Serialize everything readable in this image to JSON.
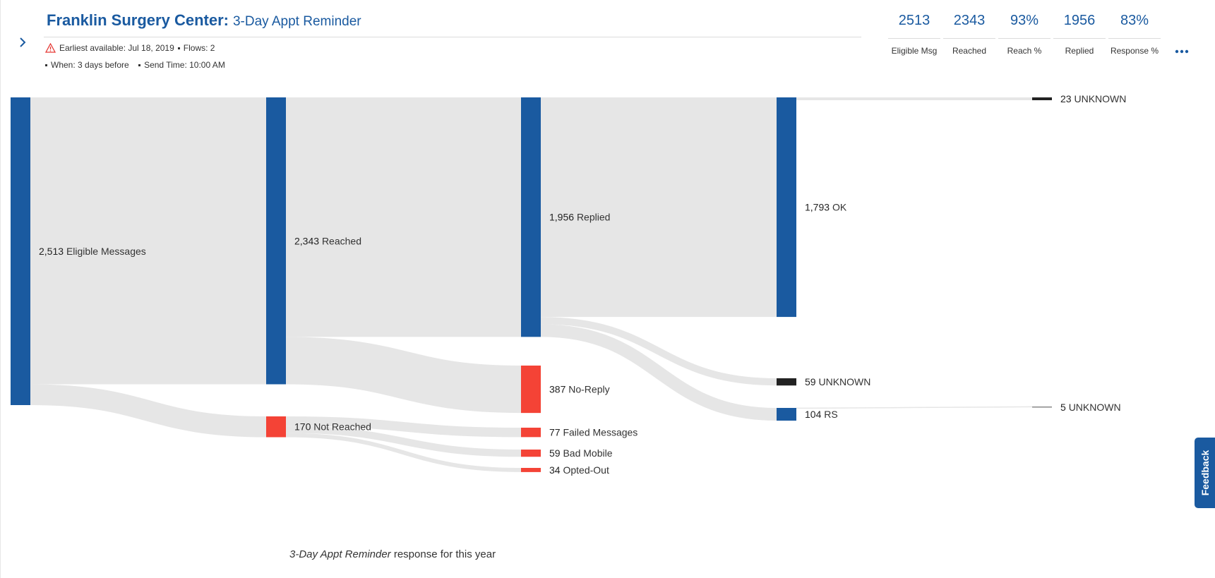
{
  "header": {
    "org_name": "Franklin Surgery Center:",
    "flow_name": "3-Day Appt Reminder",
    "earliest_available": "Earliest available: Jul 18, 2019",
    "flows": "Flows: 2",
    "when": "When: 3 days before",
    "send_time": "Send Time: 10:00 AM",
    "icons": {
      "expand": "chevron-right-icon",
      "warning": "warning-icon",
      "more": "more-horizontal-icon"
    }
  },
  "stats": [
    {
      "value": "2513",
      "label": "Eligible Msg"
    },
    {
      "value": "2343",
      "label": "Reached"
    },
    {
      "value": "93%",
      "label": "Reach %"
    },
    {
      "value": "1956",
      "label": "Replied"
    },
    {
      "value": "83%",
      "label": "Response %"
    }
  ],
  "chart_data": {
    "type": "sankey",
    "colors": {
      "success": "#1a5aa0",
      "failure": "#f44336",
      "unknown": "#222222",
      "link": "#e6e6e6"
    },
    "nodes": [
      {
        "id": "eligible",
        "count": "2,513",
        "label": "Eligible Messages",
        "value": 2513,
        "column": 0,
        "status": "success"
      },
      {
        "id": "reached",
        "count": "2,343",
        "label": "Reached",
        "value": 2343,
        "column": 1,
        "status": "success"
      },
      {
        "id": "not_reached",
        "count": "170",
        "label": "Not Reached",
        "value": 170,
        "column": 1,
        "status": "failure"
      },
      {
        "id": "replied",
        "count": "1,956",
        "label": "Replied",
        "value": 1956,
        "column": 2,
        "status": "success"
      },
      {
        "id": "no_reply",
        "count": "387",
        "label": "No-Reply",
        "value": 387,
        "column": 2,
        "status": "failure"
      },
      {
        "id": "failed",
        "count": "77",
        "label": "Failed Messages",
        "value": 77,
        "column": 2,
        "status": "failure"
      },
      {
        "id": "bad_mobile",
        "count": "59",
        "label": "Bad Mobile",
        "value": 59,
        "column": 2,
        "status": "failure"
      },
      {
        "id": "opted_out",
        "count": "34",
        "label": "Opted-Out",
        "value": 34,
        "column": 2,
        "status": "failure"
      },
      {
        "id": "ok",
        "count": "1,793",
        "label": "OK",
        "value": 1793,
        "column": 3,
        "status": "success"
      },
      {
        "id": "unknown3",
        "count": "59",
        "label": "UNKNOWN",
        "value": 59,
        "column": 3,
        "status": "unknown"
      },
      {
        "id": "rs",
        "count": "104",
        "label": "RS",
        "value": 104,
        "column": 3,
        "status": "success"
      },
      {
        "id": "unknown4a",
        "count": "23",
        "label": "UNKNOWN",
        "value": 23,
        "column": 4,
        "status": "unknown"
      },
      {
        "id": "unknown4b",
        "count": "5",
        "label": "UNKNOWN",
        "value": 5,
        "column": 4,
        "status": "unknown"
      }
    ],
    "links": [
      {
        "source": "eligible",
        "target": "reached",
        "value": 2343
      },
      {
        "source": "eligible",
        "target": "not_reached",
        "value": 170
      },
      {
        "source": "reached",
        "target": "replied",
        "value": 1956
      },
      {
        "source": "reached",
        "target": "no_reply",
        "value": 387
      },
      {
        "source": "not_reached",
        "target": "failed",
        "value": 77
      },
      {
        "source": "not_reached",
        "target": "bad_mobile",
        "value": 59
      },
      {
        "source": "not_reached",
        "target": "opted_out",
        "value": 34
      },
      {
        "source": "replied",
        "target": "ok",
        "value": 1793
      },
      {
        "source": "replied",
        "target": "unknown3",
        "value": 59
      },
      {
        "source": "replied",
        "target": "rs",
        "value": 104
      },
      {
        "source": "ok",
        "target": "unknown4a",
        "value": 23
      },
      {
        "source": "rs",
        "target": "unknown4b",
        "value": 5
      }
    ]
  },
  "caption": {
    "flow_name": "3-Day Appt Reminder",
    "suffix": " response for this year"
  },
  "feedback_label": "Feedback"
}
